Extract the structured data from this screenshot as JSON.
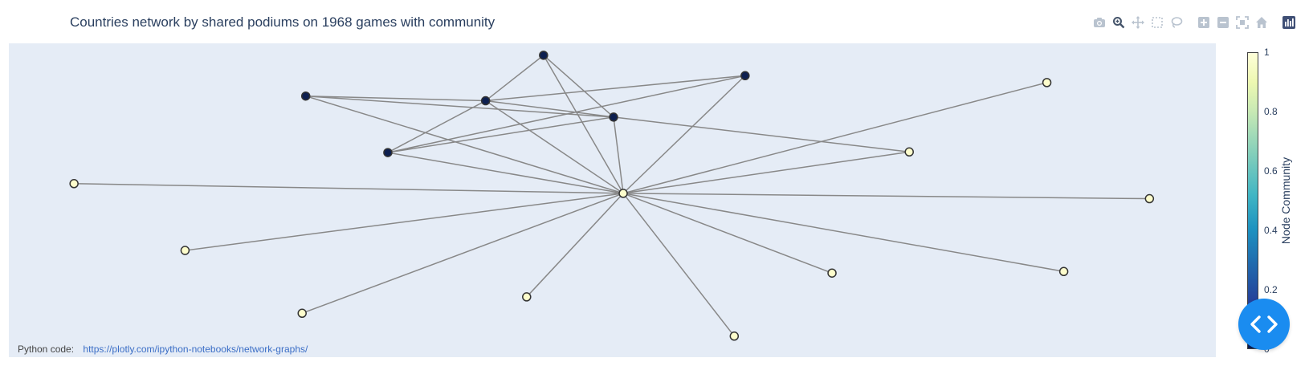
{
  "title": "Countries network by shared podiums on 1968 games with community",
  "footer": {
    "label": "Python code:",
    "link_text": "https://plotly.com/ipython-notebooks/network-graphs/"
  },
  "modebar": {
    "icons": [
      "camera-icon",
      "zoom-icon",
      "pan-icon",
      "box-select-icon",
      "lasso-icon",
      "zoom-in-icon",
      "zoom-out-icon",
      "autoscale-icon",
      "reset-axes-icon",
      "plotly-logo-icon"
    ]
  },
  "colors": {
    "plot_bg": "#e5ecf6",
    "edge": "#888888",
    "community_0": "#0d1f50",
    "community_1": "#fdfdcc",
    "fab": "#1a8cf0"
  },
  "chart_data": {
    "type": "network",
    "title": "Countries network by shared podiums on 1968 games with community",
    "xlim": [
      0,
      1
    ],
    "ylim": [
      0,
      1
    ],
    "grid": false,
    "colorscale": "YlGnBu (reversed)",
    "colorbar": {
      "title": "Node Community",
      "range": [
        0,
        1
      ],
      "ticks": [
        "0",
        "0.2",
        "0.4",
        "0.6",
        "0.8",
        "1"
      ]
    },
    "nodes": [
      {
        "id": 0,
        "x": 0.509,
        "y": 0.522,
        "community": 1
      },
      {
        "id": 1,
        "x": 0.443,
        "y": 0.962,
        "community": 0
      },
      {
        "id": 2,
        "x": 0.61,
        "y": 0.897,
        "community": 0
      },
      {
        "id": 3,
        "x": 0.246,
        "y": 0.832,
        "community": 0
      },
      {
        "id": 4,
        "x": 0.395,
        "y": 0.817,
        "community": 0
      },
      {
        "id": 5,
        "x": 0.501,
        "y": 0.765,
        "community": 0
      },
      {
        "id": 6,
        "x": 0.314,
        "y": 0.652,
        "community": 0
      },
      {
        "id": 7,
        "x": 0.86,
        "y": 0.875,
        "community": 1
      },
      {
        "id": 8,
        "x": 0.746,
        "y": 0.654,
        "community": 1
      },
      {
        "id": 9,
        "x": 0.054,
        "y": 0.553,
        "community": 1
      },
      {
        "id": 10,
        "x": 0.945,
        "y": 0.505,
        "community": 1
      },
      {
        "id": 11,
        "x": 0.146,
        "y": 0.34,
        "community": 1
      },
      {
        "id": 12,
        "x": 0.682,
        "y": 0.268,
        "community": 1
      },
      {
        "id": 13,
        "x": 0.874,
        "y": 0.273,
        "community": 1
      },
      {
        "id": 14,
        "x": 0.243,
        "y": 0.14,
        "community": 1
      },
      {
        "id": 15,
        "x": 0.429,
        "y": 0.192,
        "community": 1
      },
      {
        "id": 16,
        "x": 0.601,
        "y": 0.067,
        "community": 1
      }
    ],
    "edges": [
      [
        1,
        4
      ],
      [
        1,
        5
      ],
      [
        1,
        0
      ],
      [
        2,
        4
      ],
      [
        2,
        6
      ],
      [
        2,
        0
      ],
      [
        3,
        4
      ],
      [
        3,
        5
      ],
      [
        3,
        0
      ],
      [
        4,
        5
      ],
      [
        4,
        6
      ],
      [
        4,
        0
      ],
      [
        5,
        6
      ],
      [
        5,
        0
      ],
      [
        5,
        8
      ],
      [
        6,
        0
      ],
      [
        7,
        0
      ],
      [
        8,
        0
      ],
      [
        9,
        0
      ],
      [
        10,
        0
      ],
      [
        11,
        0
      ],
      [
        12,
        0
      ],
      [
        13,
        0
      ],
      [
        14,
        0
      ],
      [
        15,
        0
      ],
      [
        16,
        0
      ]
    ]
  }
}
